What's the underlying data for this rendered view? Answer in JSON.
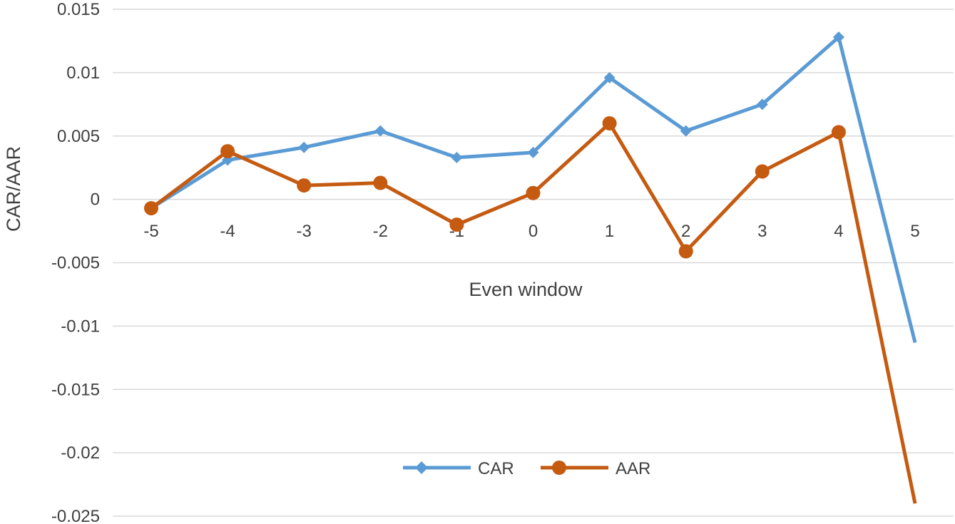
{
  "chart_data": {
    "type": "line",
    "title": "",
    "xlabel": "Even window",
    "ylabel": "CAR/AAR",
    "categories": [
      "-5",
      "-4",
      "-3",
      "-2",
      "-1",
      "0",
      "1",
      "2",
      "3",
      "4",
      "5"
    ],
    "ylim": [
      -0.025,
      0.015
    ],
    "yticks": [
      0.015,
      0.01,
      0.005,
      0,
      -0.005,
      -0.01,
      -0.015,
      -0.02,
      -0.025
    ],
    "ytick_labels": [
      "0.015",
      "0.01",
      "0.005",
      "0",
      "-0.005",
      "-0.01",
      "-0.015",
      "-0.02",
      "-0.025"
    ],
    "grid": true,
    "legend_position": "bottom",
    "series": [
      {
        "name": "CAR",
        "color": "#5b9bd5",
        "marker": "diamond",
        "values": [
          -0.0007,
          0.0031,
          0.0041,
          0.0054,
          0.0033,
          0.0037,
          0.0096,
          0.0054,
          0.0075,
          0.0128,
          -0.0113
        ]
      },
      {
        "name": "AAR",
        "color": "#c55a11",
        "marker": "circle",
        "values": [
          -0.0007,
          0.0038,
          0.0011,
          0.0013,
          -0.002,
          0.0005,
          0.006,
          -0.0041,
          0.0022,
          0.0053,
          -0.024
        ]
      }
    ]
  }
}
